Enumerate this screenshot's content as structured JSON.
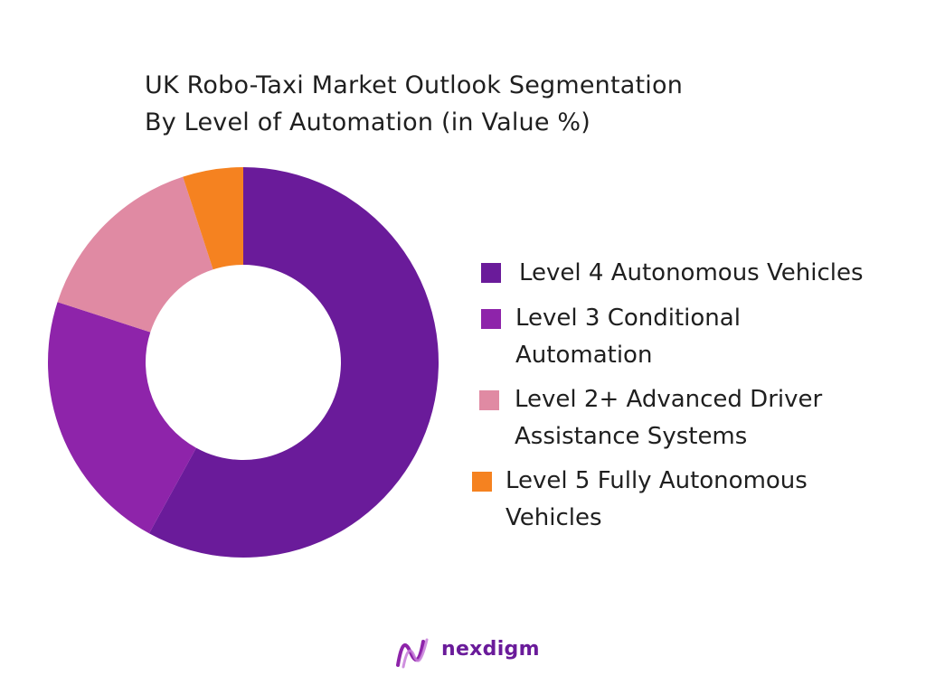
{
  "title_lines": [
    "UK Robo-Taxi Market Outlook Segmentation",
    "By Level of Automation (in Value %)"
  ],
  "chart_data": {
    "type": "pie",
    "donut": true,
    "title": "UK Robo-Taxi Market Outlook Segmentation By Level of Automation (in Value %)",
    "legend_position": "right",
    "series": [
      {
        "name": "Level 4 Autonomous Vehicles",
        "value": 58,
        "color": "#6a1b9a"
      },
      {
        "name": "Level 3 Conditional Automation",
        "value": 22,
        "color": "#8e24aa"
      },
      {
        "name": "Level 2+ Advanced Driver Assistance Systems",
        "value": 15,
        "color": "#e08aa3"
      },
      {
        "name": "Level 5 Fully Autonomous Vehicles",
        "value": 5,
        "color": "#f58220"
      }
    ]
  },
  "legend": [
    {
      "lines": [
        " Level 4 Autonomous Vehicles"
      ]
    },
    {
      "lines": [
        "Level 3 Conditional",
        "Automation"
      ]
    },
    {
      "lines": [
        "Level 2+ Advanced Driver",
        "Assistance Systems"
      ]
    },
    {
      "lines": [
        "Level 5 Fully Autonomous",
        "Vehicles"
      ]
    }
  ],
  "brand": {
    "name": "nexdigm",
    "icon": "nexdigm-logo-icon"
  }
}
